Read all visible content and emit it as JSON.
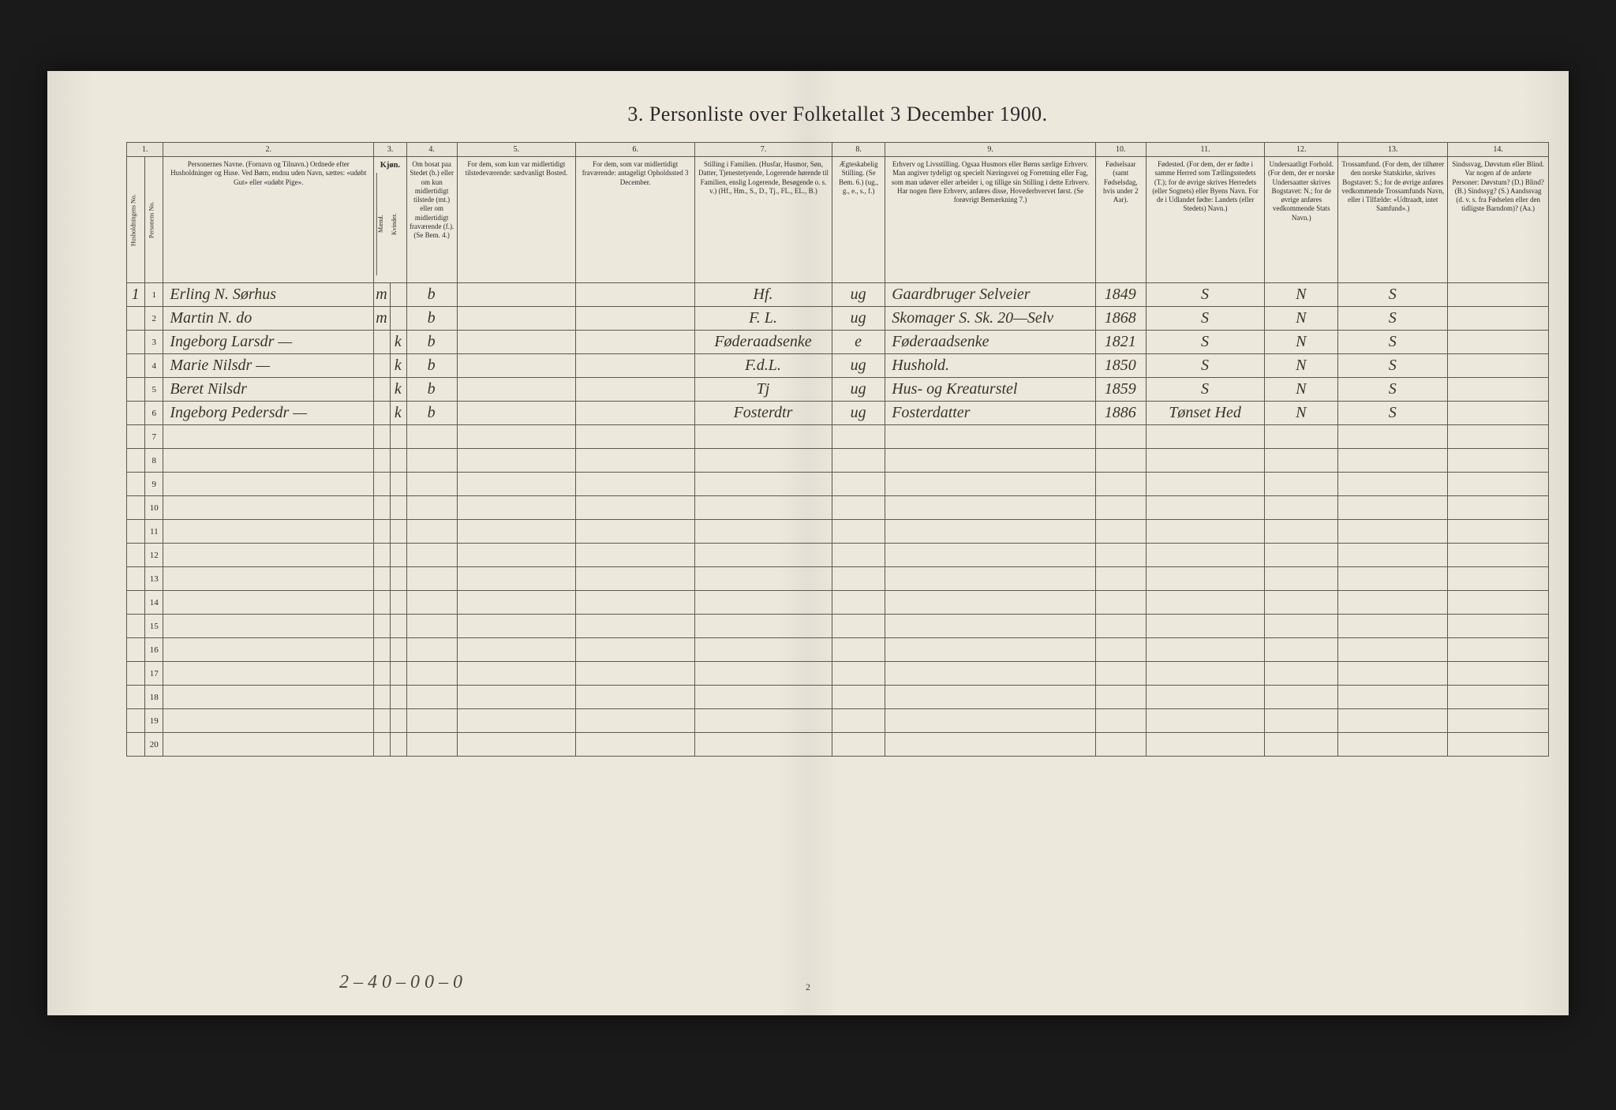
{
  "title": "3.  Personliste over Folketallet 3 December 1900.",
  "colnums": [
    "1.",
    "2.",
    "3.",
    "4.",
    "5.",
    "6.",
    "7.",
    "8.",
    "9.",
    "10.",
    "11.",
    "12.",
    "13.",
    "14."
  ],
  "headers": {
    "c1a": "Husholdningens No.",
    "c1b": "Personens No.",
    "c2": "Personernes Navne.\n(Fornavn og Tilnavn.)\nOrdnede efter Husholdninger og Huse.\nVed Børn, endnu uden Navn, sættes: «udøbt Gut» eller «udøbt Pige».",
    "c3": "Kjøn.",
    "c3m": "Mænd.",
    "c3k": "Kvinder.",
    "c4": "Om bosat paa Stedet (b.) eller om kun midlertidigt tilstede (mt.) eller om midlertidigt fraværende (f.). (Se Bem. 4.)",
    "c5": "For dem, som kun var midlertidigt tilstedeværende:\nsædvanligt Bosted.",
    "c6": "For dem, som var midlertidigt fraværende:\nantageligt Opholdssted 3 December.",
    "c7": "Stilling i Familien.\n(Husfar, Husmor, Søn, Datter, Tjenestetyende, Logerende hørende til Familien, enslig Logerende, Besøgende o. s. v.)\n(Hf., Hm., S., D., Tj., FL., EL., B.)",
    "c8": "Ægteskabelig Stilling.\n(Se Bem. 6.)\n(ug., g., e., s., f.)",
    "c9": "Erhverv og Livsstilling.\nOgsaa Husmors eller Børns særlige Erhverv. Man angiver tydeligt og specielt Næringsvei og Forretning eller Fag, som man udøver eller arbeider i, og tillige sin Stilling i dette Erhverv. Har nogen flere Erhverv, anføres disse, Hovederhvervet først.\n(Se forøvrigt Bemærkning 7.)",
    "c10": "Fødselsaar\n(samt Fødselsdag, hvis under 2 Aar).",
    "c11": "Fødested.\n(For dem, der er fødte i samme Herred som Tællingsstedets (T.); for de øvrige skrives Herredets (eller Sognets) eller Byens Navn. For de i Udlandet fødte: Landets (eller Stedets) Navn.)",
    "c12": "Undersaatligt Forhold.\n(For dem, der er norske Undersaatter skrives Bogstavet: N.; for de øvrige anføres vedkommende Stats Navn.)",
    "c13": "Trossamfund.\n(For dem, der tilhører den norske Statskirke, skrives Bogstavet: S.; for de øvrige anføres vedkommende Trossamfunds Navn, eller i Tilfælde: «Udtraadt, intet Samfund».)",
    "c14": "Sindssvag, Døvstum eller Blind.\nVar nogen af de anførte Personer:\nDøvstum? (D.)\nBlind? (B.)\nSindssyg? (S.)\nAandssvag (d. v. s. fra Fødselen eller den tidligste Barndom)? (Aa.)"
  },
  "rows": [
    {
      "hh": "1",
      "pn": "1",
      "name": "Erling N. Sørhus",
      "m": "m",
      "k": "",
      "pres": "b",
      "c5": "",
      "c6": "",
      "c7": "Hf.",
      "c8": "ug",
      "c9": "Gaardbruger Selveier",
      "c10": "1849",
      "c11": "S",
      "c12": "N",
      "c13": "S",
      "c14": ""
    },
    {
      "hh": "",
      "pn": "2",
      "name": "Martin N.   do",
      "m": "m",
      "k": "",
      "pres": "b",
      "c5": "",
      "c6": "",
      "c7": "F. L.",
      "c8": "ug",
      "c9": "Skomager   S. Sk. 20—Selv",
      "c10": "1868",
      "c11": "S",
      "c12": "N",
      "c13": "S",
      "c14": ""
    },
    {
      "hh": "",
      "pn": "3",
      "name": "Ingeborg Larsdr  —",
      "m": "",
      "k": "k",
      "pres": "b",
      "c5": "",
      "c6": "",
      "c7": "Føderaadsenke",
      "c8": "e",
      "c9": "Føderaadsenke",
      "c10": "1821",
      "c11": "S",
      "c12": "N",
      "c13": "S",
      "c14": ""
    },
    {
      "hh": "",
      "pn": "4",
      "name": "Marie Nilsdr  —",
      "m": "",
      "k": "k",
      "pres": "b",
      "c5": "",
      "c6": "",
      "c7": "F.d.L.",
      "c8": "ug",
      "c9": "Hushold.",
      "c10": "1850",
      "c11": "S",
      "c12": "N",
      "c13": "S",
      "c14": ""
    },
    {
      "hh": "",
      "pn": "5",
      "name": "Beret Nilsdr",
      "m": "",
      "k": "k",
      "pres": "b",
      "c5": "",
      "c6": "",
      "c7": "Tj",
      "c8": "ug",
      "c9": "Hus- og Kreaturstel",
      "c10": "1859",
      "c11": "S",
      "c12": "N",
      "c13": "S",
      "c14": ""
    },
    {
      "hh": "",
      "pn": "6",
      "name": "Ingeborg Pedersdr  —",
      "m": "",
      "k": "k",
      "pres": "b",
      "c5": "",
      "c6": "",
      "c7": "Fosterdtr",
      "c8": "ug",
      "c9": "Fosterdatter",
      "c10": "1886",
      "c11": "Tønset Hed",
      "c12": "N",
      "c13": "S",
      "c14": ""
    }
  ],
  "empty_from": 7,
  "empty_to": 20,
  "footnote": "2 – 4   0 – 0    0 – 0",
  "page_number": "2",
  "colors": {
    "page_bg": "#ece8dc",
    "outer_bg": "#2a2a2a",
    "ink": "#2a2a2a",
    "hand_ink": "#3a3625",
    "rule": "#5a5a4a"
  }
}
